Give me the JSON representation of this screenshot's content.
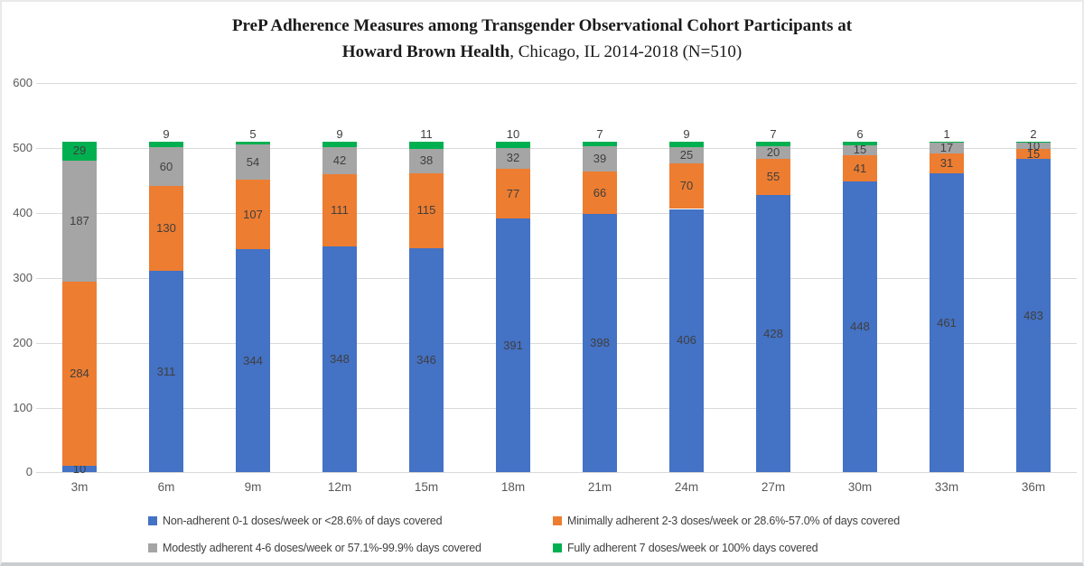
{
  "title": {
    "line1": "PreP Adherence Measures among Transgender Observational Cohort Participants at",
    "line2_bold": "Howard Brown Health",
    "line2_rest": ", Chicago, IL 2014-2018 (N=510)"
  },
  "chart_data": {
    "type": "bar",
    "stacked": true,
    "title": "PreP Adherence Measures among Transgender Observational Cohort Participants at Howard Brown Health, Chicago, IL 2014-2018 (N=510)",
    "categories": [
      "3m",
      "6m",
      "9m",
      "12m",
      "15m",
      "18m",
      "21m",
      "24m",
      "27m",
      "30m",
      "33m",
      "36m"
    ],
    "series": [
      {
        "name": "Non-adherent 0-1 doses/week or <28.6% of days covered",
        "color": "#4472C4",
        "values": [
          10,
          311,
          344,
          348,
          346,
          391,
          398,
          406,
          428,
          448,
          461,
          483
        ]
      },
      {
        "name": "Minimally adherent 2-3 doses/week or 28.6%-57.0% of days covered",
        "color": "#ED7D31",
        "values": [
          284,
          130,
          107,
          111,
          115,
          77,
          66,
          70,
          55,
          41,
          31,
          15
        ]
      },
      {
        "name": "Modestly adherent 4-6 doses/week or 57.1%-99.9% days covered",
        "color": "#A5A5A5",
        "values": [
          187,
          60,
          54,
          42,
          38,
          32,
          39,
          25,
          20,
          15,
          17,
          10
        ]
      },
      {
        "name": "Fully adherent 7 doses/week or 100% days covered",
        "color": "#00B050",
        "values": [
          29,
          9,
          5,
          9,
          11,
          10,
          7,
          9,
          7,
          6,
          1,
          2
        ]
      }
    ],
    "total_n": 510,
    "ylim": [
      0,
      600
    ],
    "yticks": [
      0,
      100,
      200,
      300,
      400,
      500,
      600
    ],
    "grid": true,
    "legend_position": "bottom"
  }
}
